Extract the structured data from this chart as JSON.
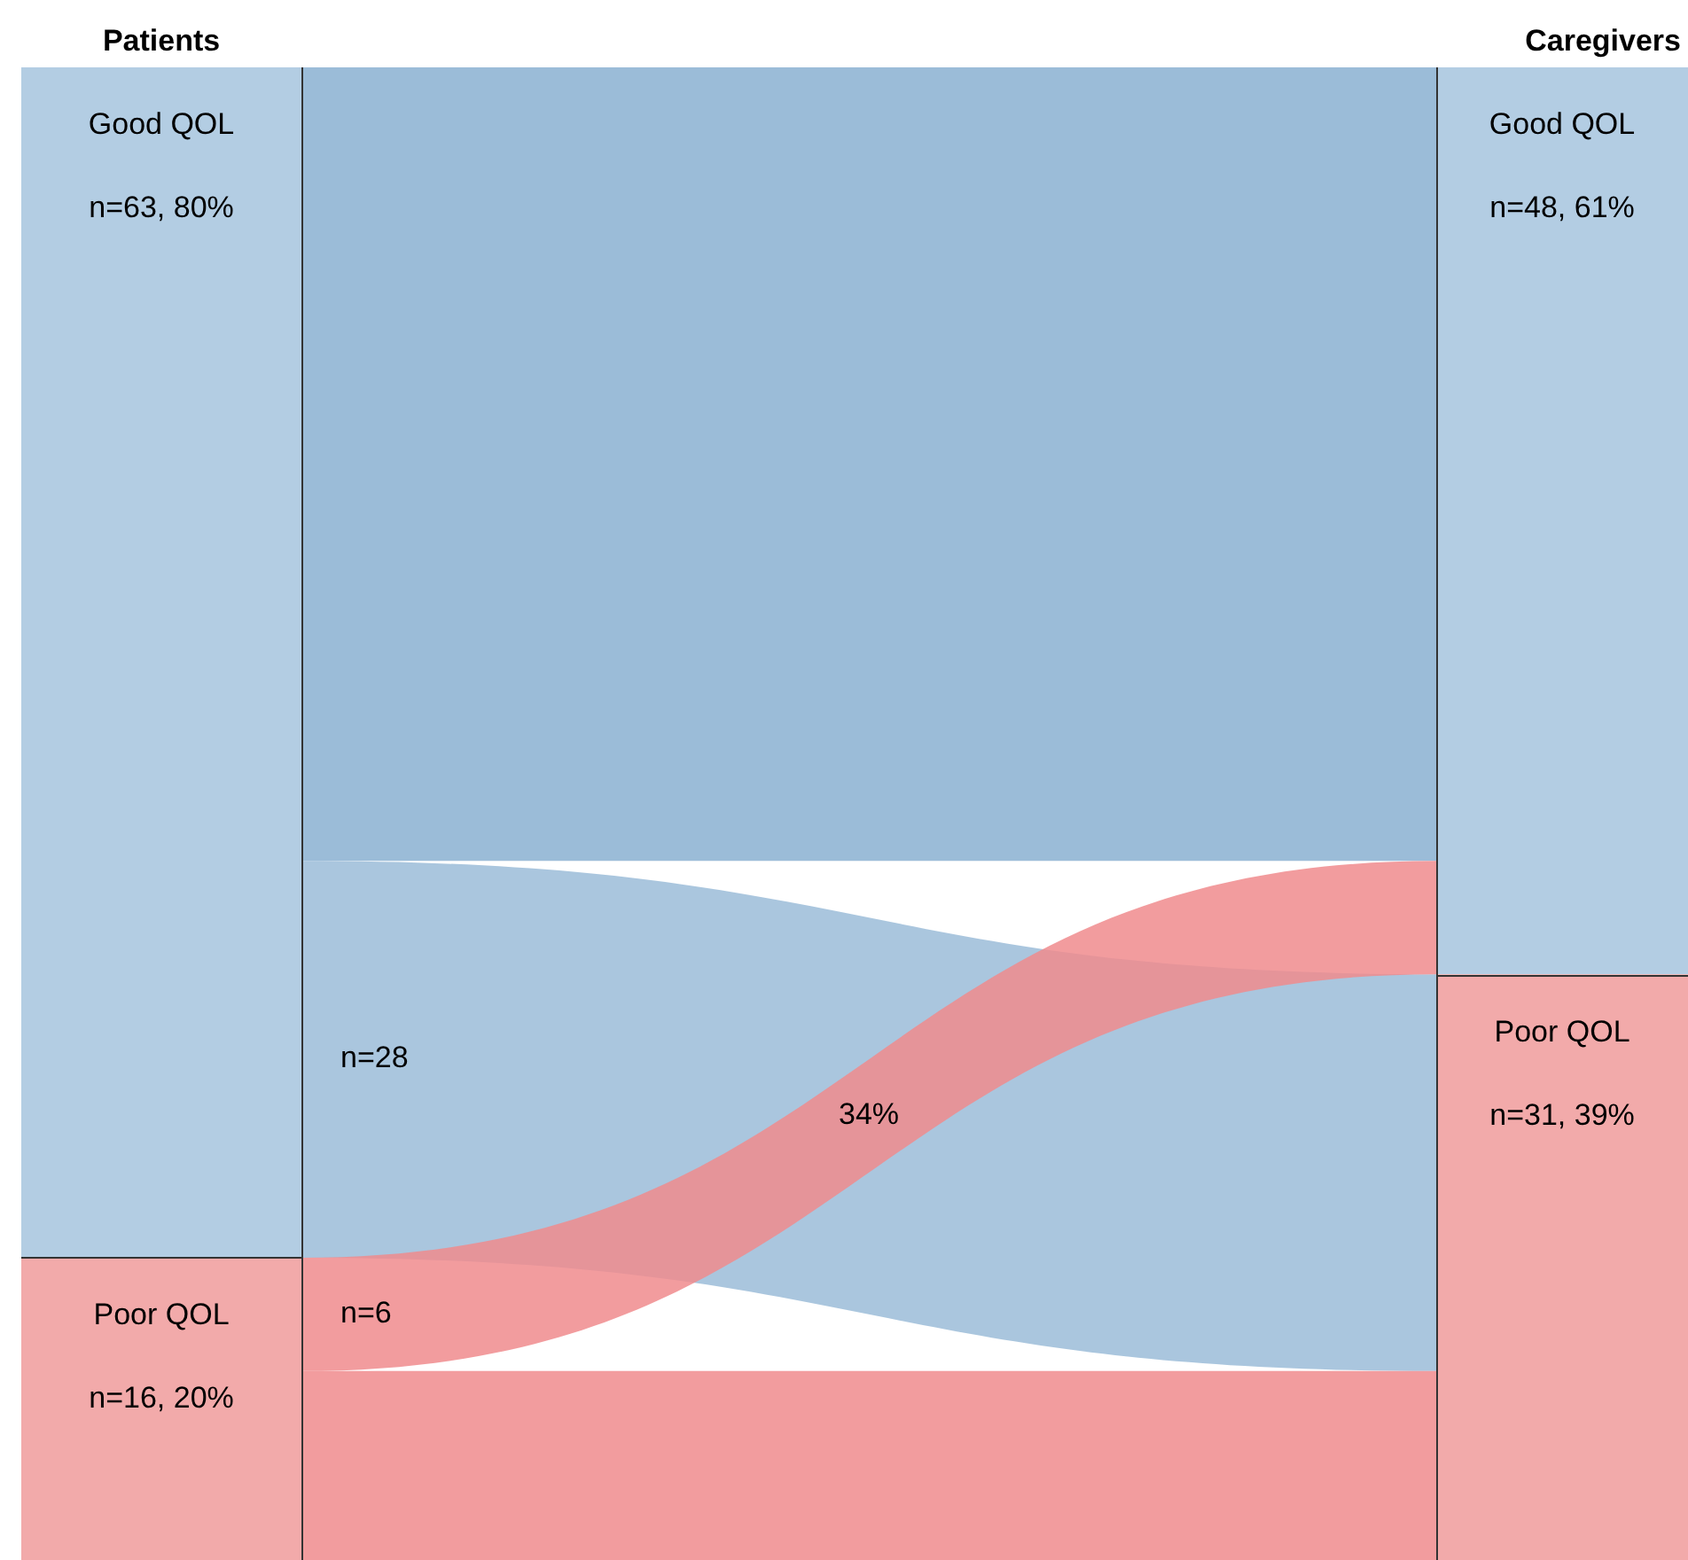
{
  "chart_data": {
    "type": "other",
    "categories": [
      "Patients",
      "Caregivers"
    ],
    "series": [
      {
        "type": "bar",
        "name": "Good QOL",
        "color": "#b3cde3",
        "values": [
          63,
          48
        ],
        "value_labels": [
          "n=63, 80%",
          "n=48, 61%"
        ]
      },
      {
        "type": "bar",
        "name": "Poor QOL",
        "color": "#f2aaaa",
        "values": [
          16,
          31
        ],
        "value_labels": [
          "n=16, 20%",
          "n=31, 39%"
        ]
      },
      {
        "type": "area",
        "color": "#9bbcd8",
        "values": [
          null,
          null
        ]
      },
      {
        "type": "area",
        "color": "#9bbcd8",
        "values": [
          null,
          null
        ],
        "value_labels": [
          "n=28",
          null
        ]
      },
      {
        "type": "area",
        "color": "#f08b8d",
        "values": [
          6,
          null
        ],
        "value_labels": [
          "n=6",
          null
        ]
      },
      {
        "type": "area",
        "color": "#f08b8d",
        "values": [
          null,
          null
        ]
      }
    ],
    "annotations": [
      "34%"
    ]
  }
}
